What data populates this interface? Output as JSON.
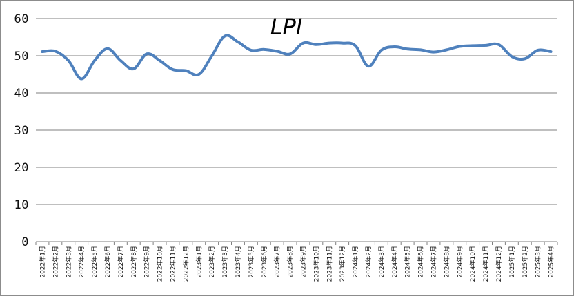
{
  "chart_data": {
    "type": "line",
    "title": "LPI",
    "xlabel": "",
    "ylabel": "",
    "ylim": [
      0,
      60
    ],
    "y_ticks": [
      "0",
      "10",
      "20",
      "30",
      "40",
      "50",
      "60"
    ],
    "grid": "horizontal",
    "legend": "none",
    "line_color": "#4f81bd",
    "categories": [
      "2022年1月",
      "2022年2月",
      "2022年3月",
      "2022年4月",
      "2022年5月",
      "2022年6月",
      "2022年7月",
      "2022年8月",
      "2022年9月",
      "2022年10月",
      "2022年11月",
      "2022年12月",
      "2023年1月",
      "2023年2月",
      "2023年3月",
      "2023年4月",
      "2023年5月",
      "2023年6月",
      "2023年7月",
      "2023年8月",
      "2023年9月",
      "2023年10月",
      "2023年11月",
      "2023年12月",
      "2024年1月",
      "2024年2月",
      "2024年3月",
      "2024年4月",
      "2024年5月",
      "2024年6月",
      "2024年7月",
      "2024年8月",
      "2024年9月",
      "2024年10月",
      "2024年11月",
      "2024年12月",
      "2025年1月",
      "2025年2月",
      "2025年3月",
      "2025年4月"
    ],
    "series": [
      {
        "values": [
          51.1,
          51.2,
          48.7,
          43.8,
          48.7,
          51.9,
          48.7,
          46.5,
          50.5,
          48.7,
          46.3,
          46.0,
          45.0,
          50.0,
          55.3,
          53.7,
          51.5,
          51.7,
          51.2,
          50.5,
          53.4,
          53.0,
          53.4,
          53.4,
          52.7,
          47.2,
          51.5,
          52.4,
          51.8,
          51.6,
          51.0,
          51.6,
          52.5,
          52.7,
          52.8,
          53.0,
          49.8,
          49.2,
          51.5,
          51.1
        ]
      }
    ]
  }
}
